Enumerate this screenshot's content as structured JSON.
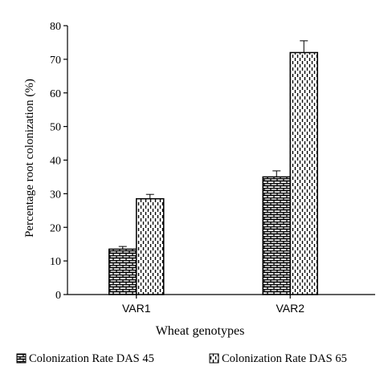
{
  "chart_data": {
    "type": "bar",
    "title": "",
    "xlabel": "Wheat genotypes",
    "ylabel": "Percentage root colonization (%)",
    "ylim": [
      0,
      80
    ],
    "yticks": [
      0,
      10,
      20,
      30,
      40,
      50,
      60,
      70,
      80
    ],
    "grid": false,
    "legend_position": "bottom",
    "categories": [
      "VAR1",
      "VAR2"
    ],
    "series": [
      {
        "name": "Colonization Rate DAS 45",
        "pattern": "brick",
        "values": [
          13.5,
          35.0
        ],
        "errors": [
          0.8,
          1.8
        ]
      },
      {
        "name": "Colonization Rate DAS 65",
        "pattern": "dashed-vertical",
        "values": [
          28.5,
          72.0
        ],
        "errors": [
          1.3,
          3.5
        ]
      }
    ]
  }
}
